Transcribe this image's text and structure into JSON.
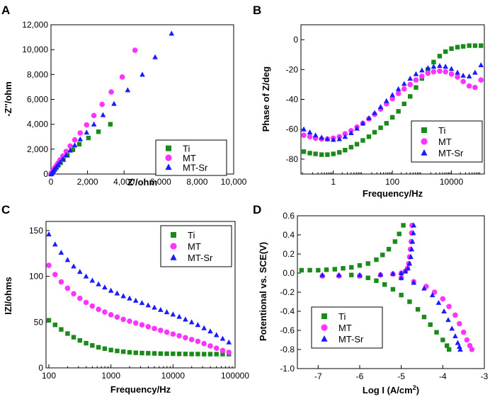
{
  "colors": {
    "Ti": "#1a8a1a",
    "MT": "#ff33ff",
    "MT-Sr": "#1a1aff"
  },
  "chart_data": [
    {
      "panel": "A",
      "type": "scatter",
      "xlabel": "Z'/ohm",
      "ylabel": "-Z''/ohm",
      "xlim": [
        0,
        10000
      ],
      "ylim": [
        0,
        12000
      ],
      "xticks": [
        0,
        2000,
        4000,
        6000,
        8000,
        10000
      ],
      "xtick_labels": [
        "0",
        "2,000",
        "4,000",
        "6,000",
        "8,000",
        "10,000"
      ],
      "yticks": [
        0,
        2000,
        4000,
        6000,
        8000,
        10000,
        12000
      ],
      "ytick_labels": [
        "0",
        "2,000",
        "4,000",
        "6,000",
        "8,000",
        "10,000",
        "12,000"
      ],
      "legend_position": "lower-right",
      "series": [
        {
          "name": "Ti",
          "marker": "square",
          "x": [
            0,
            30,
            60,
            100,
            150,
            220,
            300,
            400,
            520,
            680,
            900,
            1200,
            1550,
            2050,
            2600,
            3250
          ],
          "y": [
            0,
            40,
            90,
            160,
            260,
            380,
            520,
            700,
            900,
            1150,
            1500,
            1950,
            2400,
            2900,
            3400,
            4000
          ]
        },
        {
          "name": "MT",
          "marker": "circle",
          "x": [
            0,
            20,
            50,
            90,
            140,
            200,
            280,
            380,
            500,
            650,
            830,
            1050,
            1300,
            1600,
            1950,
            2350,
            2800,
            3300,
            3900,
            4600
          ],
          "y": [
            0,
            50,
            120,
            210,
            330,
            480,
            660,
            880,
            1140,
            1450,
            1820,
            2250,
            2750,
            3300,
            3950,
            4700,
            5600,
            6600,
            7800,
            9950
          ]
        },
        {
          "name": "MT-Sr",
          "marker": "triangle",
          "x": [
            0,
            20,
            50,
            90,
            140,
            200,
            280,
            380,
            500,
            650,
            830,
            1050,
            1300,
            1600,
            1950,
            2350,
            2850,
            3450,
            4200,
            5000,
            5700,
            6600
          ],
          "y": [
            0,
            40,
            100,
            180,
            280,
            400,
            560,
            740,
            960,
            1220,
            1530,
            1900,
            2320,
            2800,
            3350,
            4000,
            4750,
            5650,
            6750,
            8000,
            9400,
            11300
          ]
        }
      ]
    },
    {
      "panel": "B",
      "type": "scatter",
      "xlabel": "Frequency/Hz",
      "ylabel": "Phase of Z/deg",
      "xscale": "log",
      "xlim": [
        0.08,
        130000
      ],
      "ylim": [
        -90,
        10
      ],
      "xticks": [
        1,
        100,
        10000
      ],
      "xtick_labels": [
        "1",
        "100",
        "10000"
      ],
      "yticks": [
        -80,
        -60,
        -40,
        -20,
        0
      ],
      "ytick_labels": [
        "-80",
        "-60",
        "-40",
        "-20",
        "0"
      ],
      "legend_position": "lower-right",
      "series": [
        {
          "name": "Ti",
          "marker": "square",
          "x": [
            0.1,
            0.16,
            0.25,
            0.4,
            0.63,
            1,
            1.6,
            2.5,
            4,
            6.3,
            10,
            16,
            25,
            40,
            63,
            100,
            160,
            250,
            400,
            630,
            1000,
            1600,
            2500,
            4000,
            6300,
            10000,
            16000,
            25000,
            40000,
            63000,
            100000
          ],
          "y": [
            -75,
            -76,
            -76.5,
            -77,
            -77,
            -76.5,
            -75.5,
            -74,
            -72,
            -70,
            -67.5,
            -65,
            -62,
            -59,
            -56,
            -52,
            -48,
            -43,
            -38,
            -32,
            -26,
            -20,
            -15,
            -11,
            -8,
            -6,
            -5,
            -4.5,
            -4,
            -4,
            -4
          ]
        },
        {
          "name": "MT",
          "marker": "circle",
          "x": [
            0.1,
            0.16,
            0.25,
            0.4,
            0.63,
            1,
            1.6,
            2.5,
            4,
            6.3,
            10,
            16,
            25,
            40,
            63,
            100,
            160,
            250,
            400,
            630,
            1000,
            1600,
            2500,
            4000,
            6300,
            10000,
            16000,
            25000,
            40000,
            63000,
            100000
          ],
          "y": [
            -64,
            -65,
            -66,
            -66.5,
            -66.5,
            -66,
            -65,
            -63,
            -61,
            -58.5,
            -56,
            -53,
            -50,
            -46.5,
            -43,
            -39.5,
            -36,
            -33,
            -30,
            -27,
            -24.5,
            -22.5,
            -21.5,
            -21,
            -21.5,
            -23,
            -25,
            -28,
            -31,
            -32,
            -27
          ]
        },
        {
          "name": "MT-Sr",
          "marker": "triangle",
          "x": [
            0.1,
            0.16,
            0.25,
            0.4,
            0.63,
            1,
            1.6,
            2.5,
            4,
            6.3,
            10,
            16,
            25,
            40,
            63,
            100,
            160,
            250,
            400,
            630,
            1000,
            1600,
            2500,
            4000,
            6300,
            10000,
            16000,
            25000,
            40000,
            63000,
            100000
          ],
          "y": [
            -60,
            -62,
            -64,
            -65.5,
            -66.5,
            -67,
            -66.5,
            -65,
            -62.5,
            -59.5,
            -56,
            -52.5,
            -49,
            -45,
            -41,
            -37,
            -33,
            -29.5,
            -26,
            -23,
            -20.5,
            -19,
            -18,
            -17.5,
            -18,
            -19.5,
            -22,
            -24,
            -24.5,
            -22,
            -17
          ]
        }
      ]
    },
    {
      "panel": "C",
      "type": "scatter",
      "xlabel": "Frequency/Hz",
      "ylabel": "IZI/ohms",
      "xscale": "log",
      "xlim": [
        90,
        100000
      ],
      "ylim": [
        0,
        160
      ],
      "xticks": [
        100,
        1000,
        10000,
        100000
      ],
      "xtick_labels": [
        "100",
        "1000",
        "10000",
        "100000"
      ],
      "yticks": [
        0,
        50,
        100,
        150
      ],
      "ytick_labels": [
        "0",
        "50",
        "100",
        "150"
      ],
      "legend_position": "top-right",
      "series": [
        {
          "name": "Ti",
          "marker": "square",
          "x": [
            100,
            126,
            158,
            200,
            251,
            316,
            398,
            501,
            631,
            794,
            1000,
            1259,
            1585,
            1995,
            2512,
            3162,
            3981,
            5012,
            6310,
            7943,
            10000,
            12589,
            15849,
            19953,
            25119,
            31623,
            39811,
            50119,
            63096,
            79433
          ],
          "y": [
            52,
            47,
            42,
            37.5,
            33.5,
            30,
            27,
            24.5,
            22.5,
            21,
            19.5,
            18.5,
            17.7,
            17,
            16.5,
            16.2,
            16,
            15.8,
            15.6,
            15.5,
            15.4,
            15.3,
            15.2,
            15.1,
            15.1,
            15,
            15,
            15,
            15,
            15
          ]
        },
        {
          "name": "MT",
          "marker": "circle",
          "x": [
            100,
            126,
            158,
            200,
            251,
            316,
            398,
            501,
            631,
            794,
            1000,
            1259,
            1585,
            1995,
            2512,
            3162,
            3981,
            5012,
            6310,
            7943,
            10000,
            12589,
            15849,
            19953,
            25119,
            31623,
            39811,
            50119,
            63096,
            79433
          ],
          "y": [
            112,
            102,
            94,
            87,
            81,
            76,
            71.5,
            67.5,
            64,
            61,
            58,
            55.5,
            53,
            51,
            49,
            47,
            45,
            43,
            41,
            39,
            37,
            35,
            33,
            31,
            29,
            26.5,
            24,
            21.5,
            19,
            17
          ]
        },
        {
          "name": "MT-Sr",
          "marker": "triangle",
          "x": [
            100,
            126,
            158,
            200,
            251,
            316,
            398,
            501,
            631,
            794,
            1000,
            1259,
            1585,
            1995,
            2512,
            3162,
            3981,
            5012,
            6310,
            7943,
            10000,
            12589,
            15849,
            19953,
            25119,
            31623,
            39811,
            50119,
            63096,
            79433
          ],
          "y": [
            146,
            135,
            126,
            118,
            111,
            105,
            100,
            95.5,
            91.5,
            88,
            84.5,
            81.5,
            78.5,
            76,
            73.5,
            71,
            68.5,
            66,
            63.5,
            61,
            58.5,
            56,
            53,
            50,
            47,
            43.5,
            40,
            36,
            32,
            28
          ]
        }
      ]
    },
    {
      "panel": "D",
      "type": "scatter",
      "xlabel": "Log I (A/cm²)",
      "ylabel": "Potentional vs. SCE(V)",
      "xlim": [
        -7.5,
        -3
      ],
      "ylim": [
        -1.0,
        0.6
      ],
      "xticks": [
        -7,
        -6,
        -5,
        -4,
        -3
      ],
      "xtick_labels": [
        "-7",
        "-6",
        "-5",
        "-4",
        "-3"
      ],
      "yticks": [
        -1.0,
        -0.8,
        -0.6,
        -0.4,
        -0.2,
        0.0,
        0.2,
        0.4,
        0.6
      ],
      "ytick_labels": [
        "-1.0",
        "-0.8",
        "-0.6",
        "-0.4",
        "-0.2",
        "0.0",
        "0.2",
        "0.4",
        "0.6"
      ],
      "legend_position": "lower-left",
      "series": [
        {
          "name": "Ti",
          "marker": "square",
          "x": [
            -7.4,
            -7.2,
            -7.0,
            -6.8,
            -6.6,
            -6.4,
            -6.2,
            -6.0,
            -5.8,
            -5.6,
            -5.45,
            -5.3,
            -5.15,
            -5.05,
            -4.95,
            -6.2,
            -6.0,
            -5.8,
            -5.6,
            -5.4,
            -5.2,
            -5.0,
            -4.8,
            -4.6,
            -4.45,
            -4.3,
            -4.15,
            -4.0,
            -3.9,
            -3.85
          ],
          "y": [
            0.03,
            0.03,
            0.03,
            0.035,
            0.04,
            0.05,
            0.06,
            0.08,
            0.1,
            0.14,
            0.19,
            0.25,
            0.33,
            0.41,
            0.5,
            -0.02,
            -0.03,
            -0.05,
            -0.08,
            -0.12,
            -0.17,
            -0.23,
            -0.3,
            -0.38,
            -0.46,
            -0.54,
            -0.62,
            -0.7,
            -0.76,
            -0.8
          ]
        },
        {
          "name": "MT",
          "marker": "circle",
          "x": [
            -6.9,
            -6.5,
            -6.0,
            -5.5,
            -5.2,
            -5.0,
            -4.9,
            -4.85,
            -4.82,
            -4.8,
            -4.78,
            -4.76,
            -4.75,
            -4.74,
            -5.0,
            -4.7,
            -4.4,
            -4.2,
            -4.0,
            -3.85,
            -3.7,
            -3.6,
            -3.5,
            -3.42,
            -3.35,
            -3.3
          ],
          "y": [
            -0.03,
            -0.03,
            -0.03,
            -0.02,
            -0.01,
            0.0,
            0.02,
            0.05,
            0.1,
            0.17,
            0.25,
            0.33,
            0.42,
            0.5,
            -0.05,
            -0.09,
            -0.14,
            -0.2,
            -0.27,
            -0.35,
            -0.44,
            -0.53,
            -0.62,
            -0.7,
            -0.76,
            -0.8
          ]
        },
        {
          "name": "MT-Sr",
          "marker": "triangle",
          "x": [
            -6.9,
            -6.5,
            -6.0,
            -5.5,
            -5.2,
            -5.0,
            -4.9,
            -4.84,
            -4.8,
            -4.77,
            -4.75,
            -4.73,
            -4.71,
            -4.7,
            -5.0,
            -4.7,
            -4.45,
            -4.25,
            -4.1,
            -3.97,
            -3.87,
            -3.78,
            -3.7,
            -3.64,
            -3.6,
            -3.58
          ],
          "y": [
            -0.02,
            -0.02,
            -0.02,
            -0.015,
            -0.005,
            0.0,
            0.02,
            0.05,
            0.1,
            0.17,
            0.25,
            0.33,
            0.42,
            0.5,
            -0.05,
            -0.1,
            -0.16,
            -0.23,
            -0.31,
            -0.4,
            -0.49,
            -0.58,
            -0.66,
            -0.73,
            -0.77,
            -0.8
          ]
        }
      ]
    }
  ]
}
